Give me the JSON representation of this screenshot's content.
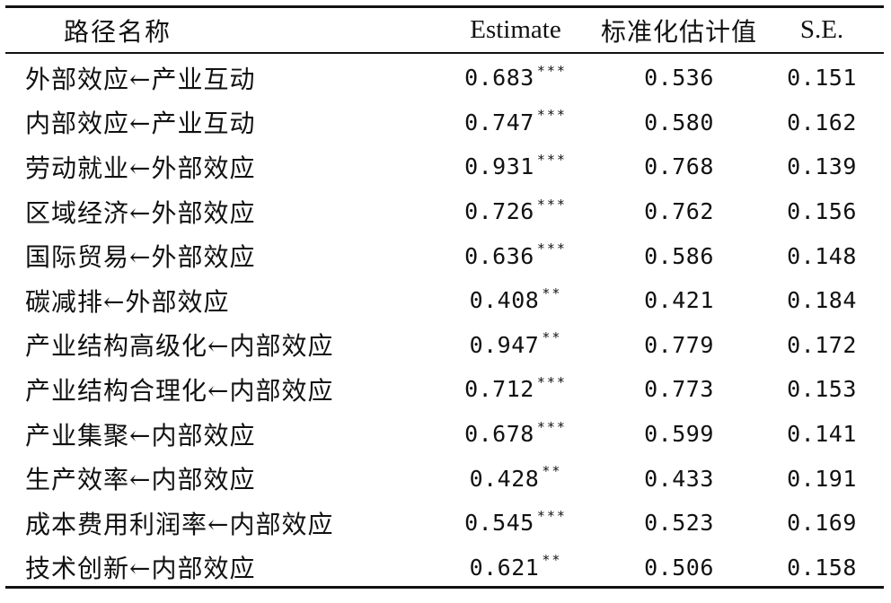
{
  "table": {
    "headers": {
      "path": "路径名称",
      "estimate": "Estimate",
      "standardized": "标准化估计值",
      "se": "S.E."
    },
    "rows": [
      {
        "path": "外部效应←产业互动",
        "estimate": "0.683",
        "sig": "***",
        "standardized": "0.536",
        "se": "0.151"
      },
      {
        "path": "内部效应←产业互动",
        "estimate": "0.747",
        "sig": "***",
        "standardized": "0.580",
        "se": "0.162"
      },
      {
        "path": "劳动就业←外部效应",
        "estimate": "0.931",
        "sig": "***",
        "standardized": "0.768",
        "se": "0.139"
      },
      {
        "path": "区域经济←外部效应",
        "estimate": "0.726",
        "sig": "***",
        "standardized": "0.762",
        "se": "0.156"
      },
      {
        "path": "国际贸易←外部效应",
        "estimate": "0.636",
        "sig": "***",
        "standardized": "0.586",
        "se": "0.148"
      },
      {
        "path": "碳减排←外部效应",
        "estimate": "0.408",
        "sig": "**",
        "standardized": "0.421",
        "se": "0.184"
      },
      {
        "path": "产业结构高级化←内部效应",
        "estimate": "0.947",
        "sig": "**",
        "standardized": "0.779",
        "se": "0.172"
      },
      {
        "path": "产业结构合理化←内部效应",
        "estimate": "0.712",
        "sig": "***",
        "standardized": "0.773",
        "se": "0.153"
      },
      {
        "path": "产业集聚←内部效应",
        "estimate": "0.678",
        "sig": "***",
        "standardized": "0.599",
        "se": "0.141"
      },
      {
        "path": "生产效率←内部效应",
        "estimate": "0.428",
        "sig": "**",
        "standardized": "0.433",
        "se": "0.191"
      },
      {
        "path": "成本费用利润率←内部效应",
        "estimate": "0.545",
        "sig": "***",
        "standardized": "0.523",
        "se": "0.169"
      },
      {
        "path": "技术创新←内部效应",
        "estimate": "0.621",
        "sig": "**",
        "standardized": "0.506",
        "se": "0.158"
      }
    ]
  }
}
